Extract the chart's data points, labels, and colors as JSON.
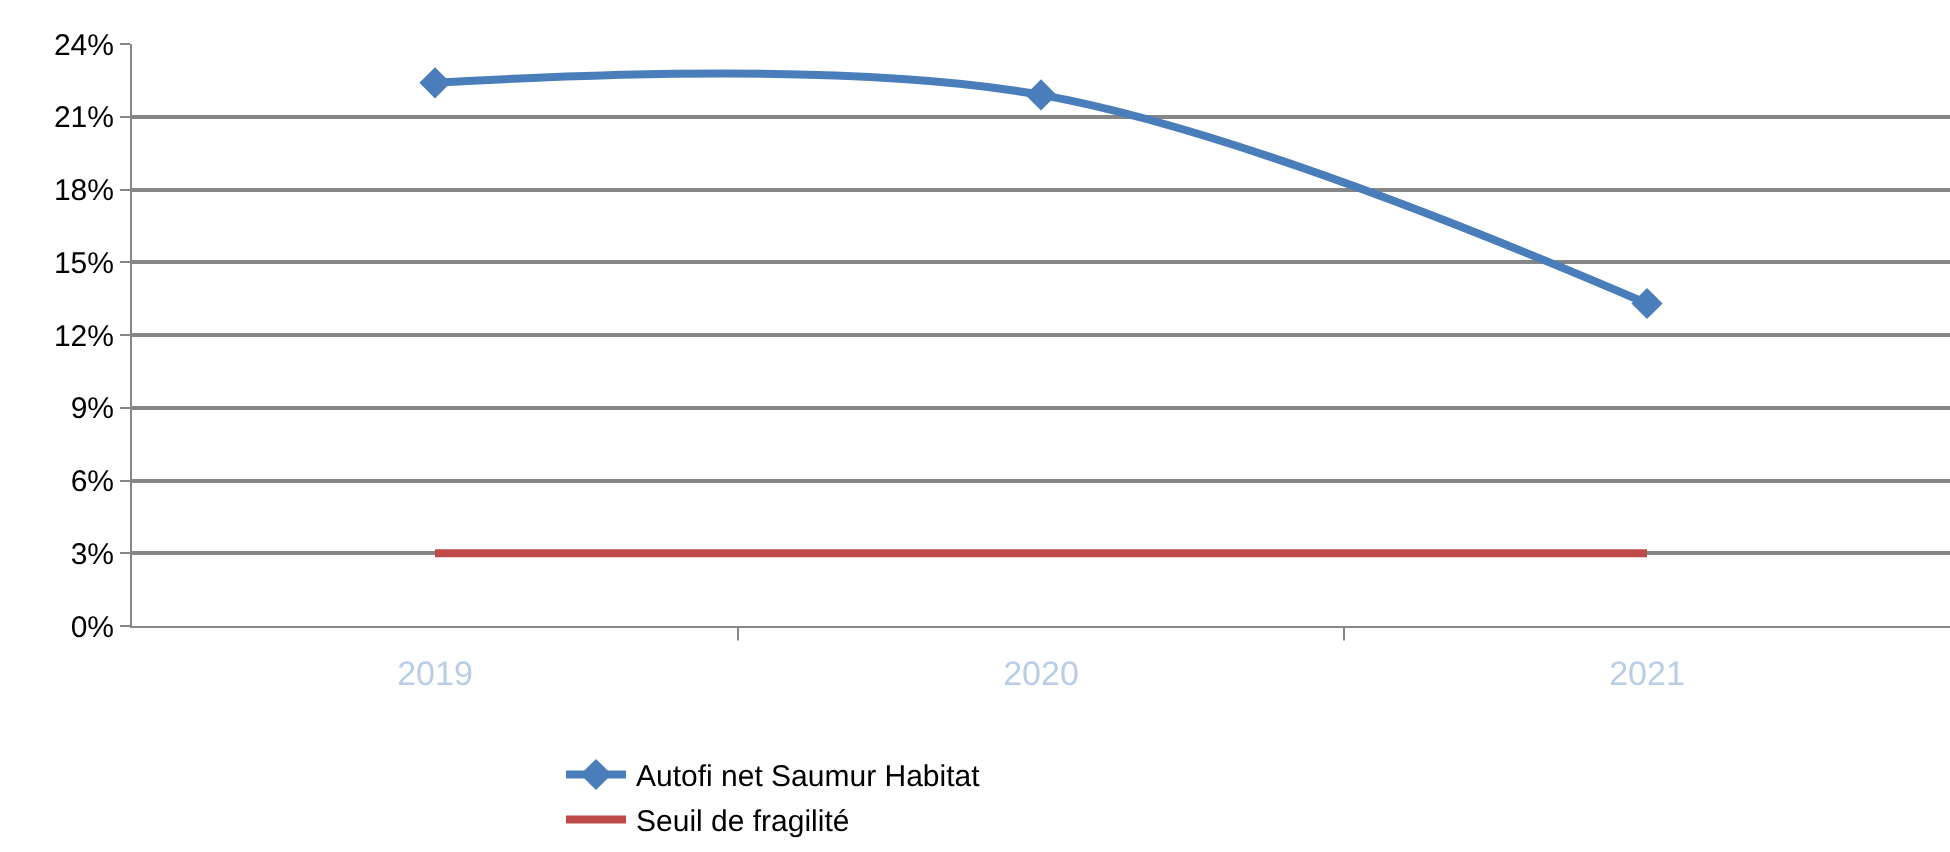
{
  "chart_data": {
    "type": "line",
    "categories": [
      "2019",
      "2020",
      "2021"
    ],
    "series": [
      {
        "name": "Autofi net Saumur Habitat",
        "color": "#4a7ebb",
        "values": [
          22.4,
          21.9,
          13.3
        ],
        "marker": "diamond"
      },
      {
        "name": "Seuil de fragilité",
        "color": "#be4b48",
        "values": [
          3,
          3,
          3
        ],
        "marker": "none"
      }
    ],
    "ylim": [
      0,
      24
    ],
    "yticks": [
      {
        "value": 0,
        "label": "0%"
      },
      {
        "value": 3,
        "label": "3%"
      },
      {
        "value": 6,
        "label": "6%"
      },
      {
        "value": 9,
        "label": "9%"
      },
      {
        "value": 12,
        "label": "12%"
      },
      {
        "value": 15,
        "label": "15%"
      },
      {
        "value": 18,
        "label": "18%"
      },
      {
        "value": 21,
        "label": "21%"
      },
      {
        "value": 24,
        "label": "24%"
      }
    ],
    "grid": "y",
    "legend": "bottom"
  }
}
